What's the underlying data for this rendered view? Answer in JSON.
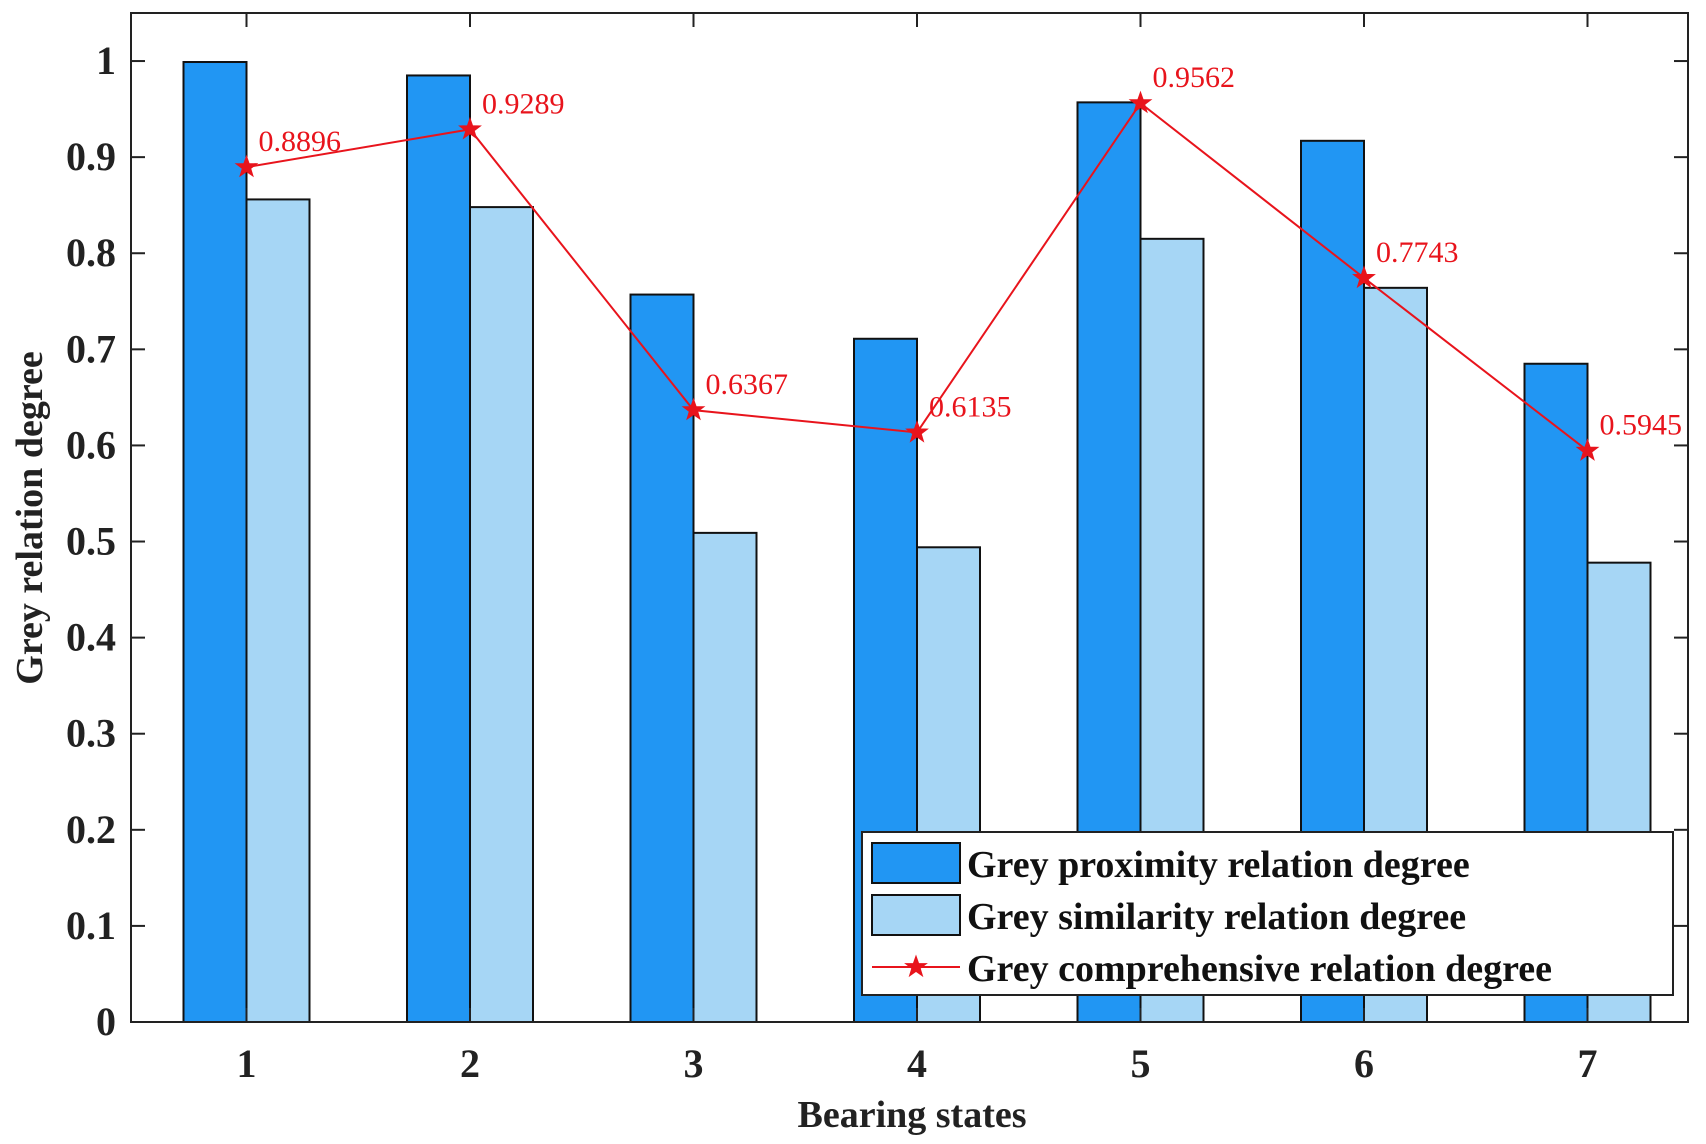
{
  "chart_data": {
    "type": "bar",
    "title": "",
    "xlabel": "Bearing states",
    "ylabel": "Grey relation degree",
    "categories": [
      "1",
      "2",
      "3",
      "4",
      "5",
      "6",
      "7"
    ],
    "ylim": [
      0,
      1.05
    ],
    "yticks": [
      "0",
      "0.1",
      "0.2",
      "0.3",
      "0.4",
      "0.5",
      "0.6",
      "0.7",
      "0.8",
      "0.9",
      "1"
    ],
    "ytick_values": [
      0,
      0.1,
      0.2,
      0.3,
      0.4,
      0.5,
      0.6,
      0.7,
      0.8,
      0.9,
      1.0
    ],
    "grid": false,
    "legend_position": "bottom-right",
    "series": [
      {
        "name": "Grey proximity relation degree",
        "type": "bar",
        "color": "#2196f3",
        "values": [
          0.999,
          0.985,
          0.757,
          0.711,
          0.957,
          0.917,
          0.685
        ]
      },
      {
        "name": "Grey similarity relation degree",
        "type": "bar",
        "color": "#a6d6f5",
        "values": [
          0.856,
          0.848,
          0.509,
          0.494,
          0.815,
          0.764,
          0.478
        ]
      },
      {
        "name": "Grey comprehensive relation degree",
        "type": "line",
        "marker": "star",
        "color": "#e8141c",
        "values": [
          0.8896,
          0.9289,
          0.6367,
          0.6135,
          0.9562,
          0.7743,
          0.5945
        ],
        "labels": [
          "0.8896",
          "0.9289",
          "0.6367",
          "0.6135",
          "0.9562",
          "0.7743",
          "0.5945"
        ]
      }
    ]
  }
}
